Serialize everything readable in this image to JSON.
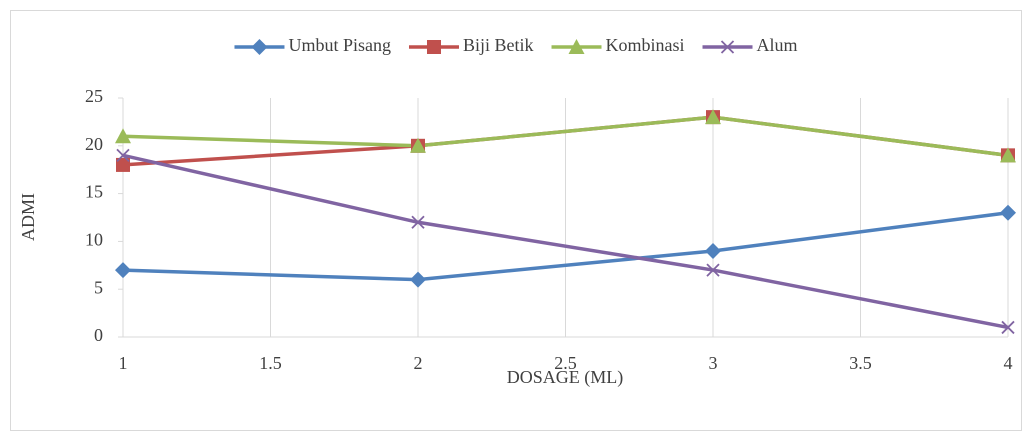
{
  "chart_data": {
    "type": "line",
    "x_label": "DOSAGE (ML)",
    "y_label": "ADMI",
    "x": [
      1,
      2,
      3,
      4
    ],
    "series": [
      {
        "name": "Umbut Pisang",
        "color": "#4f81bd",
        "marker": "diamond",
        "values": [
          7,
          6,
          9,
          13
        ]
      },
      {
        "name": "Biji Betik",
        "color": "#c0504d",
        "marker": "square",
        "values": [
          18,
          20,
          23,
          19
        ]
      },
      {
        "name": "Kombinasi",
        "color": "#9bbb59",
        "marker": "triangle",
        "values": [
          21,
          20,
          23,
          19
        ]
      },
      {
        "name": "Alum",
        "color": "#8064a2",
        "marker": "x",
        "values": [
          19,
          12,
          7,
          1
        ]
      }
    ],
    "xlim": [
      1,
      4
    ],
    "xticks": [
      1,
      1.5,
      2,
      2.5,
      3,
      3.5,
      4
    ],
    "ylim": [
      0,
      25
    ],
    "yticks": [
      0,
      5,
      10,
      15,
      20,
      25
    ],
    "grid": "x",
    "legend": "top"
  }
}
